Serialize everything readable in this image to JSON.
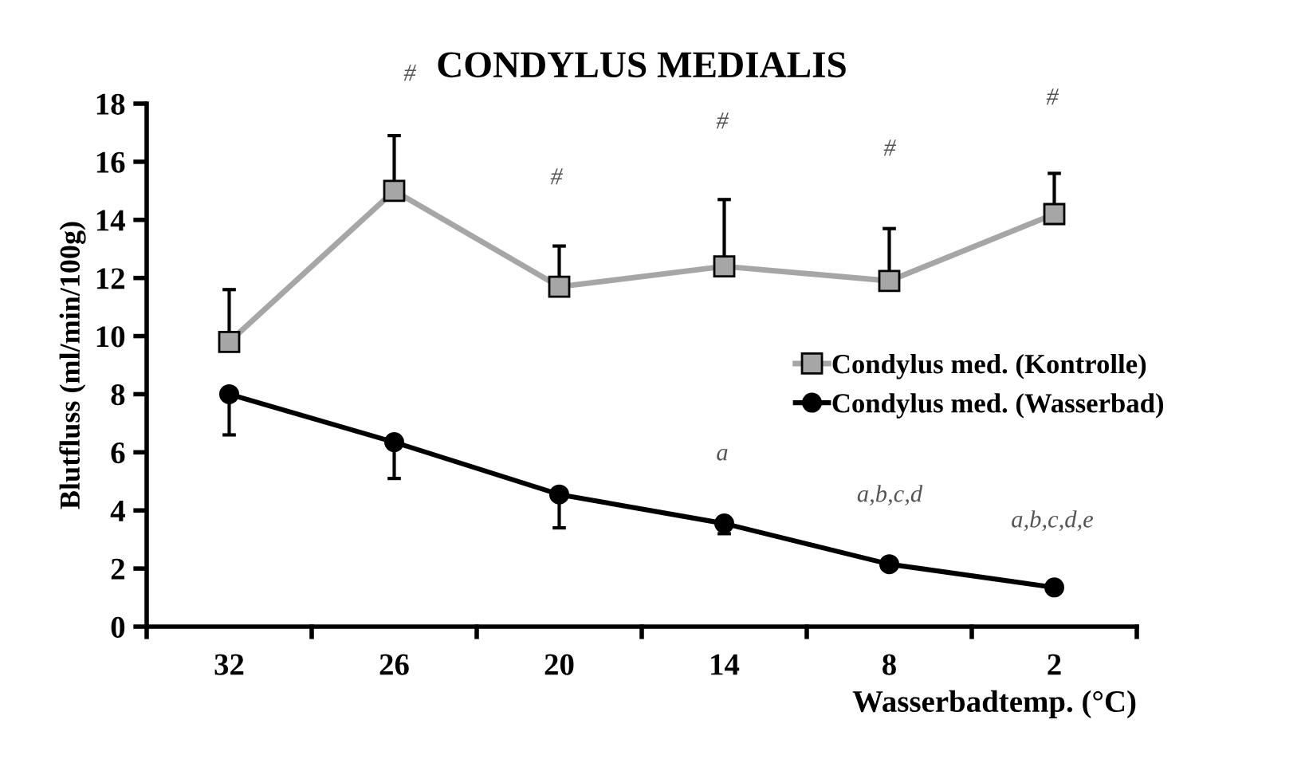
{
  "chart_data": {
    "type": "line",
    "title": "CONDYLUS MEDIALIS",
    "xlabel": "Wasserbadtemp. (°C)",
    "ylabel": "Blutfluss (ml/min/100g)",
    "categories": [
      "32",
      "26",
      "20",
      "14",
      "8",
      "2"
    ],
    "series": [
      {
        "name": "Condylus med. (Kontrolle)",
        "color": "#a6a6a6",
        "marker": "square",
        "values": [
          9.8,
          15.0,
          11.7,
          12.4,
          11.9,
          14.2
        ],
        "errors": [
          [
            9.8,
            11.6
          ],
          [
            15.0,
            16.9
          ],
          [
            11.7,
            13.1
          ],
          [
            12.4,
            14.7
          ],
          [
            11.9,
            13.7
          ],
          [
            14.2,
            15.6
          ]
        ]
      },
      {
        "name": "Condylus med. (Wasserbad)",
        "color": "#000000",
        "marker": "circle",
        "values": [
          8.0,
          6.35,
          4.55,
          3.55,
          2.15,
          1.35
        ],
        "errors": [
          [
            6.6,
            8.0
          ],
          [
            5.1,
            6.35
          ],
          [
            3.4,
            4.55
          ],
          [
            3.2,
            3.55
          ],
          null,
          null
        ]
      }
    ],
    "ylim": [
      0,
      18
    ],
    "yticks": [
      0,
      2,
      4,
      6,
      8,
      10,
      12,
      14,
      16,
      18
    ],
    "grid": false,
    "legend": "right",
    "annotations": [
      "#",
      "#",
      "#",
      "#",
      "#",
      "a",
      "a,b,c,d",
      "a,b,c,d,e"
    ]
  }
}
